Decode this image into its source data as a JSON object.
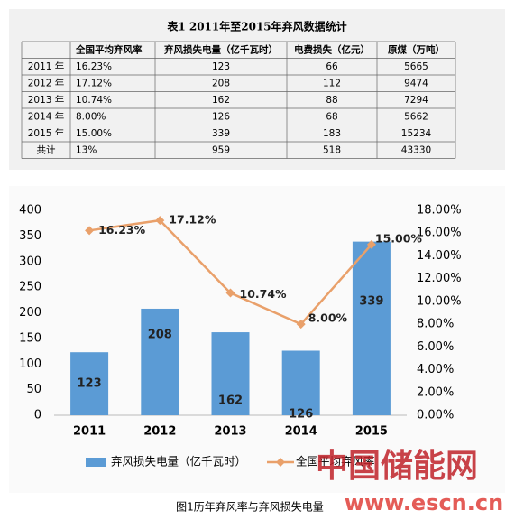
{
  "table": {
    "title": "表1 2011年至2015年弃风数据统计",
    "columns": [
      "全国平均弃风率",
      "弃风损失电量（亿千瓦时）",
      "电费损失（亿元）",
      "原煤（万吨）"
    ],
    "rows": [
      {
        "label": "2011 年",
        "cells": [
          "16.23%",
          "123",
          "66",
          "5665"
        ]
      },
      {
        "label": "2012 年",
        "cells": [
          "17.12%",
          "208",
          "112",
          "9474"
        ]
      },
      {
        "label": "2013 年",
        "cells": [
          "10.74%",
          "162",
          "88",
          "7294"
        ]
      },
      {
        "label": "2014 年",
        "cells": [
          "8.00%",
          "126",
          "68",
          "5662"
        ]
      },
      {
        "label": "2015 年",
        "cells": [
          "15.00%",
          "339",
          "183",
          "15234"
        ]
      },
      {
        "label": "共计",
        "cells": [
          "13%",
          "959",
          "518",
          "43330"
        ]
      }
    ]
  },
  "chart_data": {
    "type": "bar-line",
    "categories": [
      "2011",
      "2012",
      "2013",
      "2014",
      "2015"
    ],
    "series": [
      {
        "name": "弃风损失电量（亿千瓦时）",
        "type": "bar",
        "color": "#5b9bd5",
        "values": [
          123,
          208,
          162,
          126,
          339
        ]
      },
      {
        "name": "全国平均弃风率",
        "type": "line",
        "axis": "y2",
        "color": "#e9a06a",
        "values": [
          16.23,
          17.12,
          10.74,
          8.0,
          15.0
        ],
        "value_labels": [
          "16.23%",
          "17.12%",
          "10.74%",
          "8.00%",
          "15.00%"
        ]
      }
    ],
    "ylim": [
      0,
      400
    ],
    "yticks": [
      0,
      50,
      100,
      150,
      200,
      250,
      300,
      350,
      400
    ],
    "y2lim": [
      0,
      18
    ],
    "y2ticks": [
      {
        "value": 0,
        "label": "0.00%"
      },
      {
        "value": 2,
        "label": "2.00%"
      },
      {
        "value": 4,
        "label": "4.00%"
      },
      {
        "value": 6,
        "label": "6.00%"
      },
      {
        "value": 8,
        "label": "8.00%"
      },
      {
        "value": 10,
        "label": "10.00%"
      },
      {
        "value": 12,
        "label": "12.00%"
      },
      {
        "value": 14,
        "label": "14.00%"
      },
      {
        "value": 16,
        "label": "16.00%"
      },
      {
        "value": 18,
        "label": "18.00%"
      }
    ],
    "grid": false,
    "legend": "bottom",
    "caption": "图1历年弃风率与弃风损失电量"
  },
  "watermark": {
    "name": "中国储能网",
    "url": "www.escn.cn"
  }
}
